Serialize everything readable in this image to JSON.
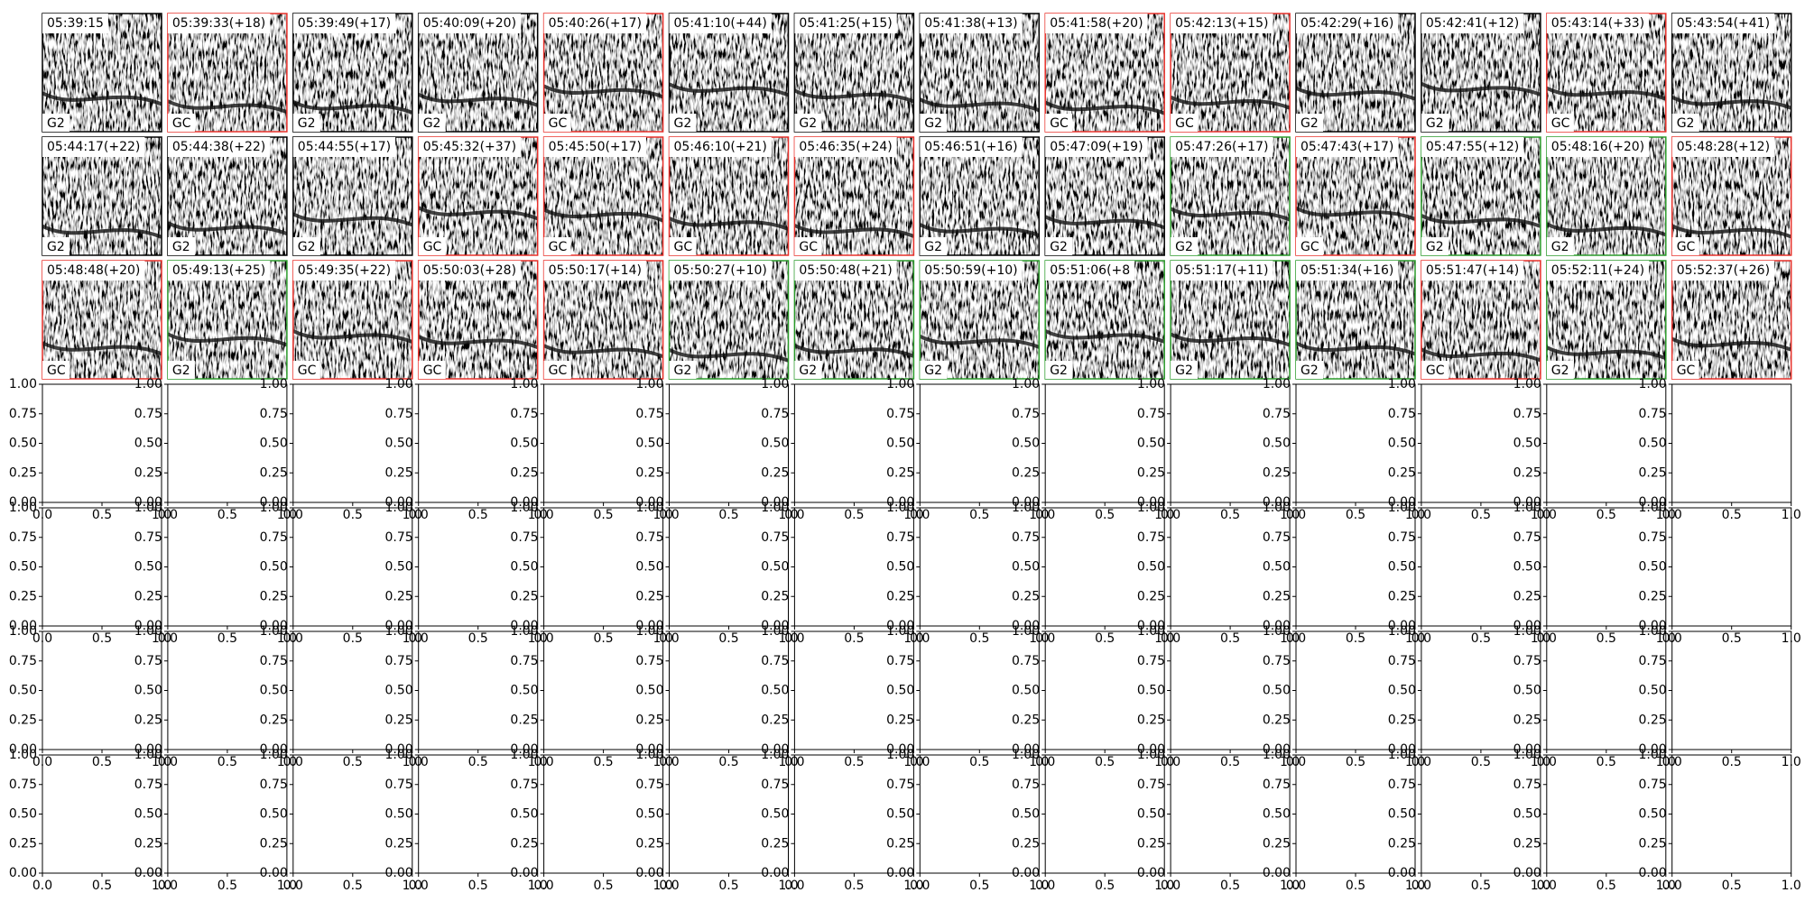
{
  "spectrogram_rows": [
    [
      {
        "title": "05:39:15",
        "label": "G2",
        "border": "black"
      },
      {
        "title": "05:39:33(+18)",
        "label": "GC",
        "border": "red"
      },
      {
        "title": "05:39:49(+17)",
        "label": "G2",
        "border": "black"
      },
      {
        "title": "05:40:09(+20)",
        "label": "G2",
        "border": "black"
      },
      {
        "title": "05:40:26(+17)",
        "label": "GC",
        "border": "red"
      },
      {
        "title": "05:41:10(+44)",
        "label": "G2",
        "border": "black"
      },
      {
        "title": "05:41:25(+15)",
        "label": "G2",
        "border": "black"
      },
      {
        "title": "05:41:38(+13)",
        "label": "G2",
        "border": "black"
      },
      {
        "title": "05:41:58(+20)",
        "label": "GC",
        "border": "red"
      },
      {
        "title": "05:42:13(+15)",
        "label": "GC",
        "border": "red"
      },
      {
        "title": "05:42:29(+16)",
        "label": "G2",
        "border": "black"
      },
      {
        "title": "05:42:41(+12)",
        "label": "G2",
        "border": "black"
      },
      {
        "title": "05:43:14(+33)",
        "label": "GC",
        "border": "red"
      },
      {
        "title": "05:43:54(+41)",
        "label": "G2",
        "border": "black"
      }
    ],
    [
      {
        "title": "05:44:17(+22)",
        "label": "G2",
        "border": "black"
      },
      {
        "title": "05:44:38(+22)",
        "label": "G2",
        "border": "black"
      },
      {
        "title": "05:44:55(+17)",
        "label": "G2",
        "border": "black"
      },
      {
        "title": "05:45:32(+37)",
        "label": "GC",
        "border": "red"
      },
      {
        "title": "05:45:50(+17)",
        "label": "GC",
        "border": "red"
      },
      {
        "title": "05:46:10(+21)",
        "label": "GC",
        "border": "red"
      },
      {
        "title": "05:46:35(+24)",
        "label": "GC",
        "border": "red"
      },
      {
        "title": "05:46:51(+16)",
        "label": "G2",
        "border": "black"
      },
      {
        "title": "05:47:09(+19)",
        "label": "G2",
        "border": "black"
      },
      {
        "title": "05:47:26(+17)",
        "label": "G2",
        "border": "green"
      },
      {
        "title": "05:47:43(+17)",
        "label": "GC",
        "border": "red"
      },
      {
        "title": "05:47:55(+12)",
        "label": "G2",
        "border": "green"
      },
      {
        "title": "05:48:16(+20)",
        "label": "G2",
        "border": "green"
      },
      {
        "title": "05:48:28(+12)",
        "label": "GC",
        "border": "red"
      }
    ],
    [
      {
        "title": "05:48:48(+20)",
        "label": "GC",
        "border": "red"
      },
      {
        "title": "05:49:13(+25)",
        "label": "G2",
        "border": "green"
      },
      {
        "title": "05:49:35(+22)",
        "label": "GC",
        "border": "red"
      },
      {
        "title": "05:50:03(+28)",
        "label": "GC",
        "border": "red"
      },
      {
        "title": "05:50:17(+14)",
        "label": "GC",
        "border": "red"
      },
      {
        "title": "05:50:27(+10)",
        "label": "G2",
        "border": "green"
      },
      {
        "title": "05:50:48(+21)",
        "label": "G2",
        "border": "green"
      },
      {
        "title": "05:50:59(+10)",
        "label": "G2",
        "border": "green"
      },
      {
        "title": "05:51:06(+8",
        "label": "G2",
        "border": "green"
      },
      {
        "title": "05:51:17(+11)",
        "label": "G2",
        "border": "green"
      },
      {
        "title": "05:51:34(+16)",
        "label": "G2",
        "border": "green"
      },
      {
        "title": "05:51:47(+14)",
        "label": "GC",
        "border": "red"
      },
      {
        "title": "05:52:11(+24)",
        "label": "G2",
        "border": "green"
      },
      {
        "title": "05:52:37(+26)",
        "label": "GC",
        "border": "red"
      }
    ]
  ],
  "empty_axes": {
    "yticks": [
      "0.00",
      "0.25",
      "0.50",
      "0.75",
      "1.00"
    ],
    "xticks": [
      "0.0",
      "0.5",
      "1.0"
    ]
  }
}
